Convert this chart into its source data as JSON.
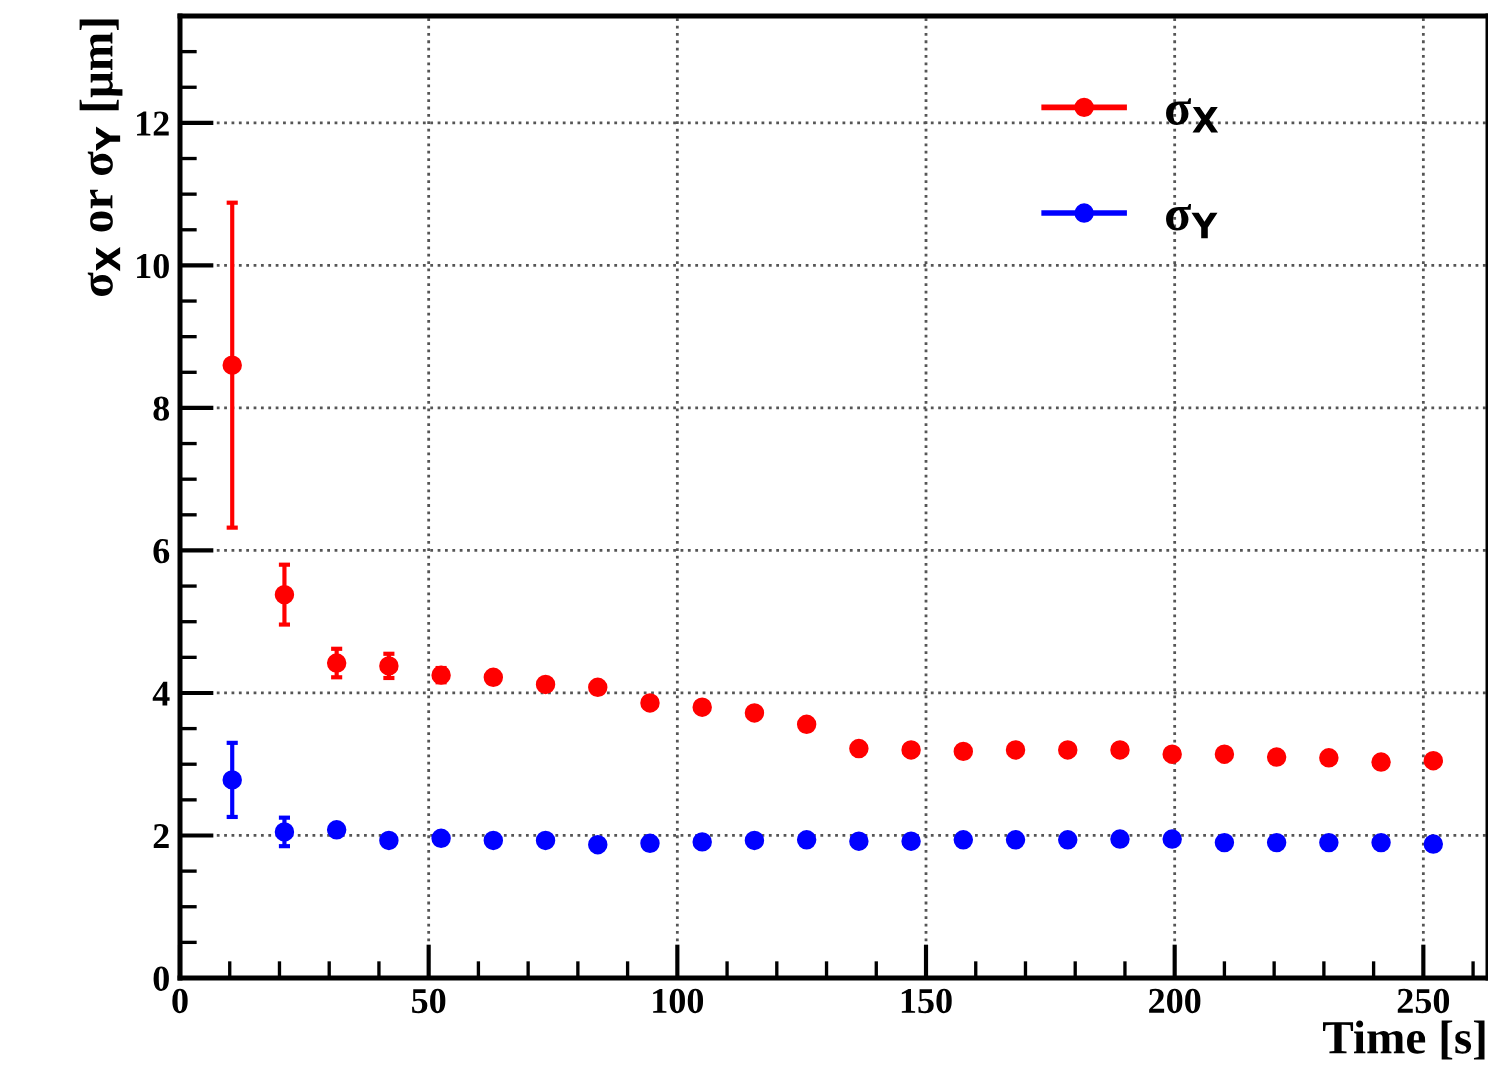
{
  "chart_data": {
    "type": "scatter",
    "xlabel": "Time [s]",
    "ylabel": "σ$_{X}$ or σ$_{Y}$ [μm]",
    "xlim": [
      0,
      263
    ],
    "xticks": [
      0,
      50,
      100,
      150,
      200,
      250
    ],
    "ylim": [
      0,
      13.5
    ],
    "yticks": [
      0,
      2,
      4,
      6,
      8,
      10,
      12
    ],
    "grid": true,
    "legend": "top right",
    "marker": "circle",
    "series": [
      {
        "name": "σ$_{X}$",
        "color": "#ff0000",
        "x": [
          10.5,
          21,
          31.5,
          42,
          52.5,
          63,
          73.5,
          84,
          94.5,
          105,
          115.5,
          126,
          136.5,
          147,
          157.5,
          168,
          178.5,
          189,
          199.5,
          210,
          220.5,
          231,
          241.5,
          252
        ],
        "values": [
          8.6,
          5.38,
          4.42,
          4.38,
          4.25,
          4.22,
          4.12,
          4.08,
          3.86,
          3.8,
          3.72,
          3.56,
          3.22,
          3.2,
          3.18,
          3.2,
          3.2,
          3.2,
          3.14,
          3.14,
          3.1,
          3.09,
          3.03,
          3.05
        ],
        "errors": [
          2.28,
          0.42,
          0.2,
          0.17,
          0.1,
          null,
          null,
          null,
          null,
          null,
          null,
          null,
          null,
          null,
          null,
          null,
          null,
          null,
          null,
          null,
          null,
          null,
          null,
          null
        ]
      },
      {
        "name": "σ$_{Y}$",
        "color": "#0000ff",
        "x": [
          10.5,
          21,
          31.5,
          42,
          52.5,
          63,
          73.5,
          84,
          94.5,
          105,
          115.5,
          126,
          136.5,
          147,
          157.5,
          168,
          178.5,
          189,
          199.5,
          210,
          220.5,
          231,
          241.5,
          252
        ],
        "values": [
          2.78,
          2.05,
          2.08,
          1.93,
          1.96,
          1.93,
          1.93,
          1.87,
          1.89,
          1.91,
          1.93,
          1.94,
          1.92,
          1.92,
          1.94,
          1.94,
          1.94,
          1.95,
          1.95,
          1.9,
          1.9,
          1.9,
          1.9,
          1.88
        ],
        "errors": [
          0.52,
          0.2,
          null,
          null,
          null,
          null,
          null,
          null,
          null,
          null,
          null,
          null,
          null,
          null,
          null,
          null,
          null,
          null,
          null,
          null,
          null,
          null,
          null,
          null
        ]
      }
    ]
  }
}
